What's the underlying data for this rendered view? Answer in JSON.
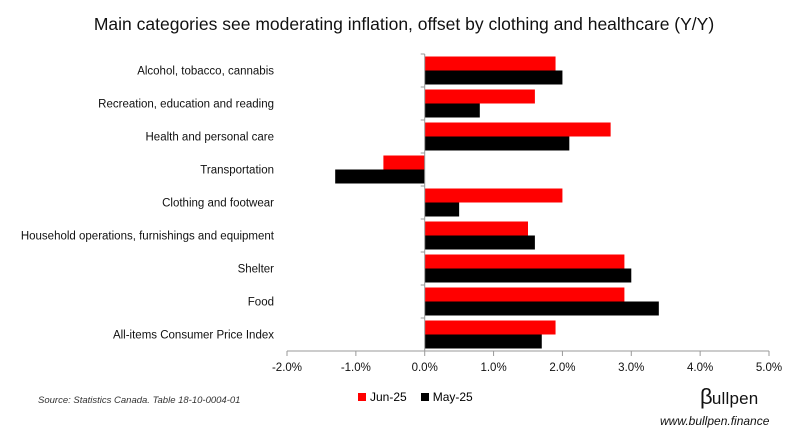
{
  "chart_data": {
    "type": "bar",
    "orientation": "horizontal",
    "title": "Main categories see moderating inflation, offset by clothing and healthcare (Y/Y)",
    "categories": [
      "Alcohol, tobacco, cannabis",
      "Recreation, education and reading",
      "Health and personal care",
      "Transportation",
      "Clothing and footwear",
      "Household operations, furnishings and equipment",
      "Shelter",
      "Food",
      "All-items Consumer Price Index"
    ],
    "series": [
      {
        "name": "Jun-25",
        "color": "#ff0000",
        "values": [
          1.9,
          1.6,
          2.7,
          -0.6,
          2.0,
          1.5,
          2.9,
          2.9,
          1.9
        ]
      },
      {
        "name": "May-25",
        "color": "#000000",
        "values": [
          2.0,
          0.8,
          2.1,
          -1.3,
          0.5,
          1.6,
          3.0,
          3.4,
          1.7
        ]
      }
    ],
    "xlim": [
      -2.0,
      5.0
    ],
    "xticks": [
      -2.0,
      -1.0,
      0.0,
      1.0,
      2.0,
      3.0,
      4.0,
      5.0
    ],
    "xtick_labels": [
      "-2.0%",
      "-1.0%",
      "0.0%",
      "1.0%",
      "2.0%",
      "3.0%",
      "4.0%",
      "5.0%"
    ],
    "grid": false,
    "legend_position": "bottom-center"
  },
  "source_note": "Source: Statistics Canada. Table 18-10-0004-01",
  "brand": {
    "logo_beta": "β",
    "logo_text": "ullpen",
    "url": "www.bullpen.finance"
  }
}
